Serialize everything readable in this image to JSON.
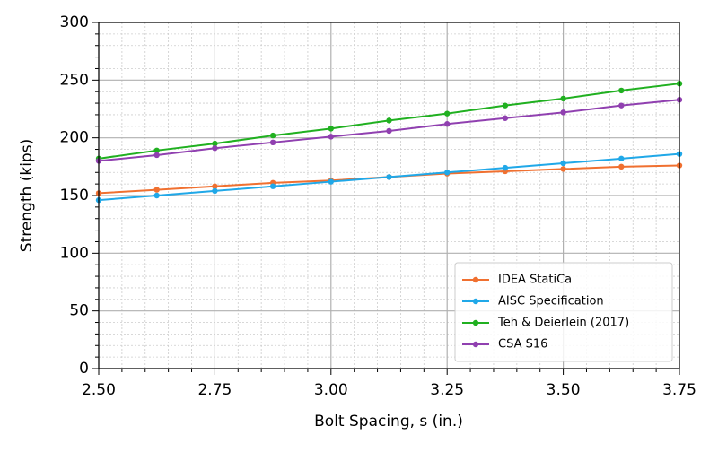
{
  "chart_data": {
    "type": "line",
    "x_label": "Bolt Spacing, s (in.)",
    "y_label": "Strength (kips)",
    "x": [
      2.5,
      2.625,
      2.75,
      2.875,
      3.0,
      3.125,
      3.25,
      3.375,
      3.5,
      3.625,
      3.75
    ],
    "series": [
      {
        "name": "IDEA StatiCa",
        "color": "#f07030",
        "values": [
          152,
          155,
          158,
          161,
          163,
          166,
          169,
          171,
          173,
          175,
          176
        ]
      },
      {
        "name": "AISC Specification",
        "color": "#20a8e8",
        "values": [
          146,
          150,
          154,
          158,
          162,
          166,
          170,
          174,
          178,
          182,
          186
        ]
      },
      {
        "name": "Teh & Deierlein (2017)",
        "color": "#20b020",
        "values": [
          182,
          189,
          195,
          202,
          208,
          215,
          221,
          228,
          234,
          241,
          247
        ]
      },
      {
        "name": "CSA S16",
        "color": "#9040b0",
        "values": [
          180,
          185,
          191,
          196,
          201,
          206,
          212,
          217,
          222,
          228,
          233
        ]
      }
    ],
    "xlim": [
      2.5,
      3.75
    ],
    "xticks": [
      {
        "value": 2.5,
        "label": "2.50"
      },
      {
        "value": 2.75,
        "label": "2.75"
      },
      {
        "value": 3.0,
        "label": "3.00"
      },
      {
        "value": 3.25,
        "label": "3.25"
      },
      {
        "value": 3.5,
        "label": "3.50"
      },
      {
        "value": 3.75,
        "label": "3.75"
      }
    ],
    "ylim": [
      0,
      300
    ],
    "yticks": [
      0,
      50,
      100,
      150,
      200,
      250,
      300
    ],
    "grid": true,
    "minor_grid": true,
    "legend": "lower right"
  }
}
